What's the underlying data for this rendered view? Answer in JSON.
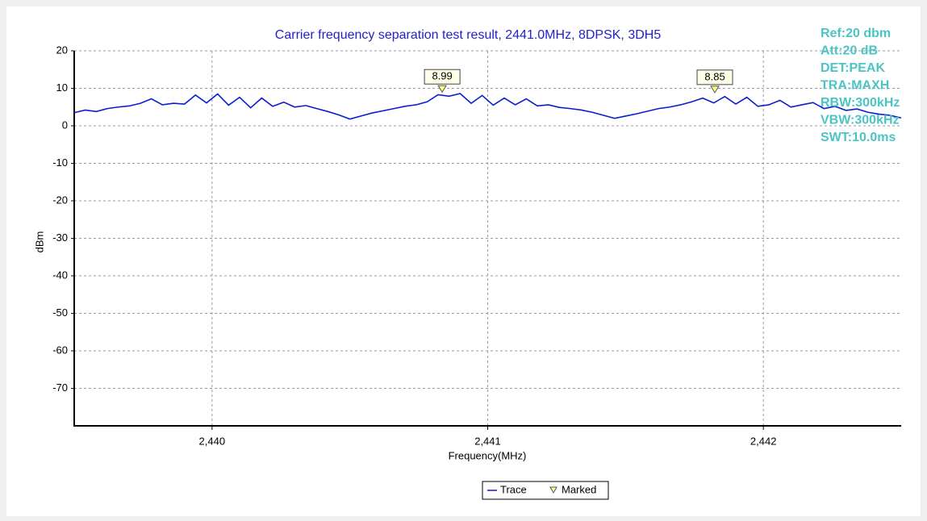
{
  "chart_data": {
    "type": "line",
    "title": "Carrier frequency separation test result, 2441.0MHz, 8DPSK, 3DH5",
    "xlabel": "Frequency(MHz)",
    "ylabel": "dBm",
    "info": [
      "Ref:20 dbm",
      "Att:20 dB",
      "DET:PEAK",
      "TRA:MAXH",
      "RBW:300kHz",
      "VBW:300kHz",
      "SWT:10.0ms"
    ],
    "xlim": [
      2439.5,
      2442.5
    ],
    "xticks": [
      {
        "value": 2440,
        "label": "2,440"
      },
      {
        "value": 2441,
        "label": "2,441"
      },
      {
        "value": 2442,
        "label": "2,442"
      }
    ],
    "ylim": [
      -80,
      20
    ],
    "yticks": [
      -70,
      -60,
      -50,
      -40,
      -30,
      -20,
      -10,
      0,
      10,
      20
    ],
    "grid": true,
    "legend": "bottom",
    "series": [
      {
        "name": "Trace",
        "color": "#0a1ed0",
        "x": [
          2439.5,
          2439.54,
          2439.58,
          2439.62,
          2439.66,
          2439.7,
          2439.74,
          2439.78,
          2439.82,
          2439.86,
          2439.9,
          2439.94,
          2439.98,
          2440.02,
          2440.06,
          2440.1,
          2440.14,
          2440.18,
          2440.22,
          2440.26,
          2440.3,
          2440.34,
          2440.38,
          2440.42,
          2440.46,
          2440.5,
          2440.54,
          2440.58,
          2440.62,
          2440.66,
          2440.7,
          2440.74,
          2440.78,
          2440.82,
          2440.86,
          2440.9,
          2440.94,
          2440.98,
          2441.02,
          2441.06,
          2441.1,
          2441.14,
          2441.18,
          2441.22,
          2441.26,
          2441.3,
          2441.34,
          2441.38,
          2441.42,
          2441.46,
          2441.5,
          2441.54,
          2441.58,
          2441.62,
          2441.66,
          2441.7,
          2441.74,
          2441.78,
          2441.82,
          2441.86,
          2441.9,
          2441.94,
          2441.98,
          2442.02,
          2442.06,
          2442.1,
          2442.14,
          2442.18,
          2442.22,
          2442.26,
          2442.3,
          2442.34,
          2442.38,
          2442.42,
          2442.46,
          2442.5
        ],
        "values": [
          3.5,
          4.2,
          3.8,
          4.6,
          5.0,
          5.3,
          6.0,
          7.2,
          5.6,
          6.0,
          5.8,
          8.2,
          6.1,
          8.5,
          5.5,
          7.6,
          4.8,
          7.4,
          5.2,
          6.3,
          5.0,
          5.4,
          4.6,
          3.8,
          2.9,
          1.8,
          2.6,
          3.4,
          4.0,
          4.6,
          5.2,
          5.6,
          6.4,
          8.3,
          7.9,
          8.6,
          6.0,
          8.1,
          5.5,
          7.4,
          5.6,
          7.2,
          5.3,
          5.6,
          4.9,
          4.6,
          4.2,
          3.6,
          2.8,
          2.0,
          2.6,
          3.2,
          3.9,
          4.6,
          5.0,
          5.6,
          6.4,
          7.4,
          6.1,
          7.8,
          5.8,
          7.6,
          5.2,
          5.6,
          6.8,
          5.0,
          5.6,
          6.2,
          4.6,
          5.2,
          4.1,
          4.5,
          3.6,
          3.1,
          2.8,
          2.1
        ]
      },
      {
        "name": "Marked",
        "color": "#ffff80",
        "x": [
          2440.835,
          2441.824
        ],
        "values": [
          8.99,
          8.85
        ]
      }
    ]
  }
}
